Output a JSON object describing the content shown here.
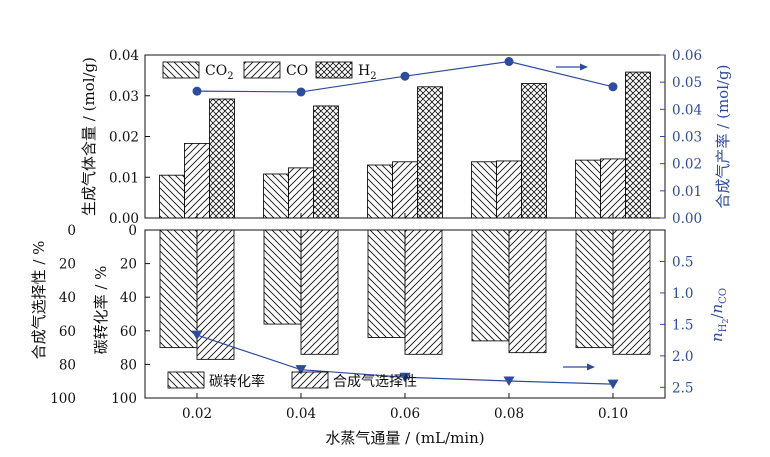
{
  "chart_data": [
    {
      "panel": "top",
      "type": "bar",
      "categories": [
        "0.02",
        "0.04",
        "0.06",
        "0.08",
        "0.10"
      ],
      "ylabel": "生成气体含量 / (mol/g)",
      "ylim": [
        0,
        0.04
      ],
      "yticks": [
        "0.00",
        "0.01",
        "0.02",
        "0.03",
        "0.04"
      ],
      "series": [
        {
          "name": "CO",
          "sub": "2",
          "pattern": "back",
          "values": [
            0.0105,
            0.0108,
            0.013,
            0.0138,
            0.0142
          ]
        },
        {
          "name": "CO",
          "sub": "",
          "pattern": "fwd",
          "values": [
            0.0183,
            0.0123,
            0.0138,
            0.014,
            0.0145
          ]
        },
        {
          "name": "H",
          "sub": "2",
          "pattern": "cross",
          "values": [
            0.0292,
            0.0275,
            0.0322,
            0.033,
            0.0358
          ]
        }
      ],
      "line": {
        "type": "line",
        "ylabel": "合成气产率 / (mol/g)",
        "ylim": [
          0,
          0.06
        ],
        "yticks": [
          "0.00",
          "0.01",
          "0.02",
          "0.03",
          "0.04",
          "0.05",
          "0.06"
        ],
        "marker": "circle",
        "values": [
          0.0467,
          0.0464,
          0.0522,
          0.0576,
          0.0483
        ]
      },
      "color_line": "#2e4c9e"
    },
    {
      "panel": "bottom",
      "type": "bar",
      "categories": [
        "0.02",
        "0.04",
        "0.06",
        "0.08",
        "0.10"
      ],
      "xlabel": "水蒸气通量 / (mL/min)",
      "xticks": [
        "0.02",
        "0.04",
        "0.06",
        "0.08",
        "0.10"
      ],
      "inverted": true,
      "ylabel_left_outer": "合成气选择性 / %",
      "ylabel_left_inner": "碳转化率 / %",
      "ylim": [
        0,
        100
      ],
      "yticks": [
        "0",
        "20",
        "40",
        "60",
        "80",
        "100"
      ],
      "series": [
        {
          "name": "碳转化率",
          "pattern": "back",
          "values": [
            70,
            56,
            64,
            66,
            70
          ]
        },
        {
          "name": "合成气选择性",
          "pattern": "fwd",
          "values": [
            77,
            74,
            74,
            73,
            74
          ]
        }
      ],
      "line": {
        "type": "line",
        "ylabel_main": "n",
        "ylabel_sub": "H2",
        "ylabel_tail": "CO",
        "ylim": [
          0,
          2.67
        ],
        "yticks": [
          "0.5",
          "1.0",
          "1.5",
          "2.0",
          "2.5"
        ],
        "marker": "triangle-down",
        "values": [
          1.67,
          2.22,
          2.34,
          2.4,
          2.45
        ]
      },
      "color_line": "#2e4c9e"
    }
  ]
}
